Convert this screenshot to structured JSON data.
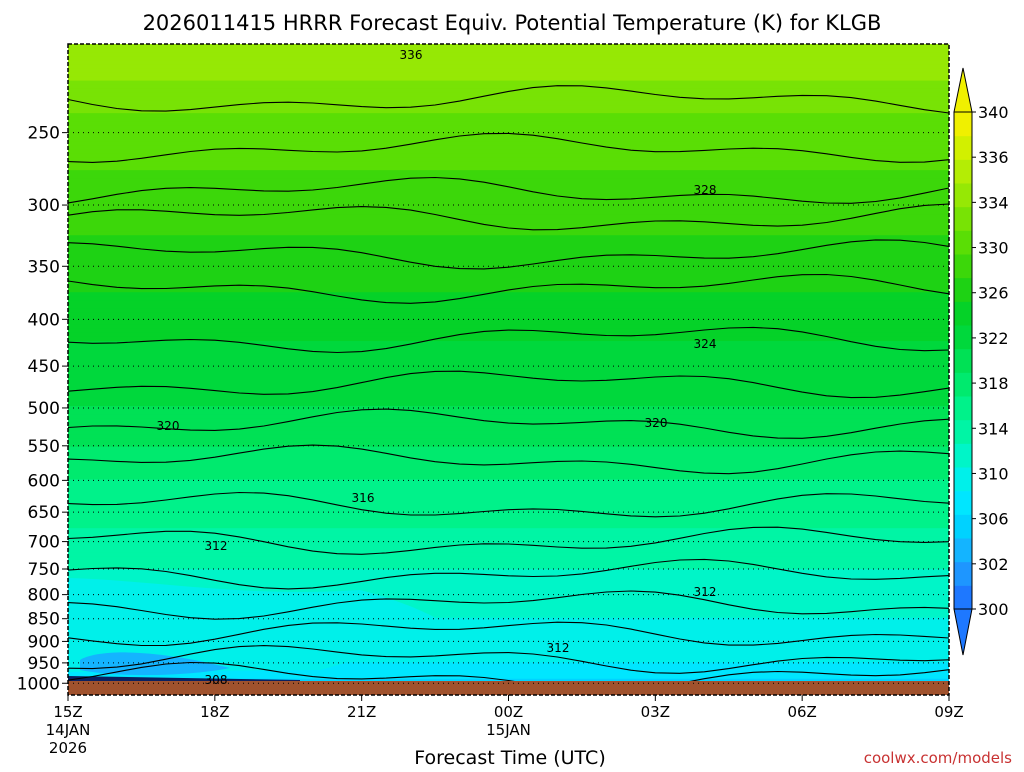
{
  "chart_data": {
    "type": "heatmap",
    "title": "2026011415 HRRR Forecast Equiv. Potential Temperature (K) for KLGB",
    "xlabel": "Forecast Time (UTC)",
    "ylabel": "",
    "credit": "coolwx.com/models",
    "x_ticks": [
      {
        "label": "15Z",
        "sub1": "14JAN",
        "sub2": "2026",
        "hour": 0
      },
      {
        "label": "18Z",
        "sub1": "",
        "sub2": "",
        "hour": 3
      },
      {
        "label": "21Z",
        "sub1": "",
        "sub2": "",
        "hour": 6
      },
      {
        "label": "00Z",
        "sub1": "15JAN",
        "sub2": "",
        "hour": 9
      },
      {
        "label": "03Z",
        "sub1": "",
        "sub2": "",
        "hour": 12
      },
      {
        "label": "06Z",
        "sub1": "",
        "sub2": "",
        "hour": 15
      },
      {
        "label": "09Z",
        "sub1": "",
        "sub2": "",
        "hour": 18
      }
    ],
    "xlim_hours": [
      0,
      18
    ],
    "y_ticks": [
      "250",
      "300",
      "350",
      "400",
      "450",
      "500",
      "550",
      "600",
      "650",
      "700",
      "750",
      "800",
      "850",
      "900",
      "950",
      "1000"
    ],
    "y_scale": "log-pressure (hPa)",
    "ylim_hpa": [
      1030,
      200
    ],
    "grid": "dotted, at y ticks",
    "colorbar": {
      "labels": [
        "340",
        "336",
        "334",
        "330",
        "326",
        "322",
        "318",
        "314",
        "310",
        "306",
        "302",
        "300"
      ],
      "levels": [
        300,
        302,
        304,
        306,
        308,
        310,
        312,
        314,
        316,
        318,
        320,
        322,
        324,
        326,
        328,
        330,
        332,
        334,
        336,
        338,
        340
      ],
      "colors": [
        "#1e78ff",
        "#1e96ff",
        "#14b4ff",
        "#00d2ff",
        "#00e6ff",
        "#00f0ea",
        "#00f5c8",
        "#00f5a5",
        "#00f28a",
        "#00ea6e",
        "#00e155",
        "#00d83c",
        "#05d228",
        "#1ed214",
        "#3cd70a",
        "#5ade05",
        "#78e305",
        "#96e805",
        "#b4ed05",
        "#d2f000",
        "#f0f000"
      ]
    },
    "contour_labels": [
      "336",
      "328",
      "324",
      "320",
      "320",
      "316",
      "312",
      "312",
      "312",
      "308"
    ],
    "theta_e_profile": {
      "pressure_hpa": [
        1000,
        975,
        950,
        925,
        900,
        850,
        800,
        750,
        700,
        650,
        600,
        550,
        500,
        450,
        400,
        350,
        300,
        250,
        200
      ],
      "value_K": [
        307,
        309,
        310,
        311,
        311,
        312,
        313,
        314,
        315,
        317,
        318,
        320,
        322,
        323,
        325,
        327,
        329,
        331,
        336
      ]
    },
    "ground_color": "#a0522d"
  }
}
